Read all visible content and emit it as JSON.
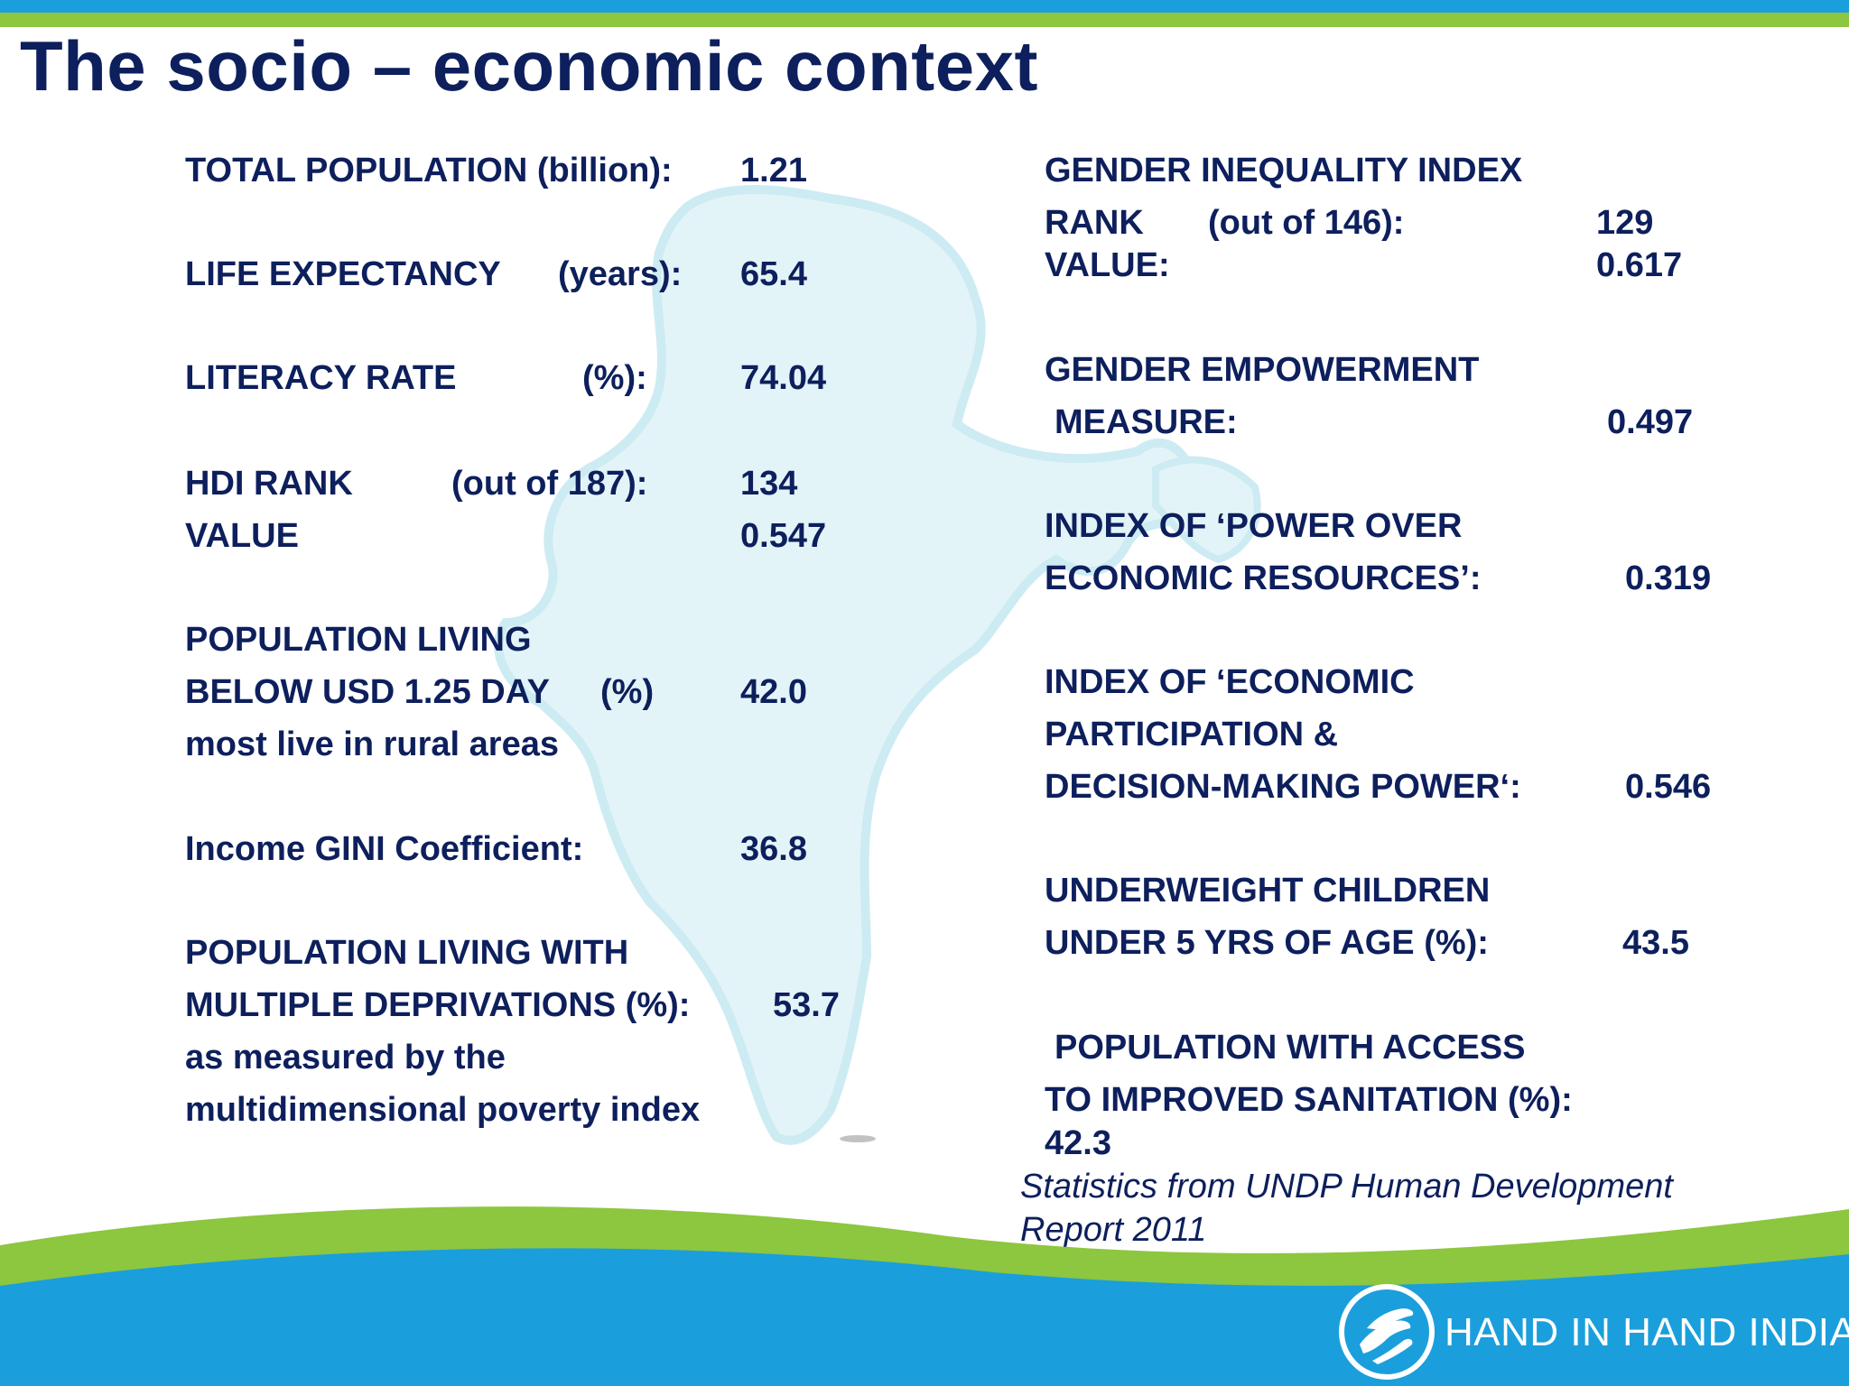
{
  "title": "The socio – economic context",
  "left": {
    "population_label": "TOTAL POPULATION (billion):",
    "population_value": "1.21",
    "life_label": "LIFE EXPECTANCY",
    "life_unit": "(years):",
    "life_value": "65.4",
    "literacy_label": "LITERACY RATE",
    "literacy_unit": "(%):",
    "literacy_value": "74.04",
    "hdi_label": "HDI   RANK",
    "hdi_unit": "(out of 187):",
    "hdi_rank": "134",
    "hdi_value_label": "VALUE",
    "hdi_value": "0.547",
    "poverty_line1": "POPULATION LIVING",
    "poverty_line2": "BELOW USD 1.25 DAY",
    "poverty_unit": "(%)",
    "poverty_value": "42.0",
    "poverty_line3": "most live in rural areas",
    "gini_label": "Income GINI Coefficient:",
    "gini_value": "36.8",
    "multi_line1": "POPULATION LIVING WITH",
    "multi_line2": "MULTIPLE   DEPRIVATIONS (%):",
    "multi_value": "53.7",
    "multi_line3": "as measured by the",
    "multi_line4": "multidimensional poverty index"
  },
  "right": {
    "gii_title": "GENDER INEQUALITY INDEX",
    "gii_rank_label": "RANK",
    "gii_rank_unit": "(out of 146):",
    "gii_rank": "129",
    "gii_value_label": "VALUE:",
    "gii_value": "0.617",
    "gem_line1": "GENDER EMPOWERMENT",
    "gem_line2": "MEASURE:",
    "gem_value": "0.497",
    "power_line1": "INDEX OF ‘POWER OVER",
    "power_line2": "ECONOMIC RESOURCES’:",
    "power_value": "0.319",
    "econ_line1": "INDEX OF ‘ECONOMIC",
    "econ_line2": "PARTICIPATION &",
    "econ_line3": "DECISION-MAKING POWER‘:",
    "econ_value": "0.546",
    "under_line1": "UNDERWEIGHT CHILDREN",
    "under_line2": "UNDER 5 YRS OF AGE (%):",
    "under_value": "43.5",
    "san_line1": "POPULATION WITH ACCESS",
    "san_line2": "TO IMPROVED SANITATION (%):",
    "san_value": "42.3"
  },
  "source_line1": "Statistics from UNDP Human Development",
  "source_line2": "Report 2011",
  "logo_text": "HAND IN HAND INDIA",
  "colors": {
    "title": "#0d1f5c",
    "blue": "#1a9fdc",
    "green": "#8dc63f",
    "map": "#dff3f7"
  }
}
